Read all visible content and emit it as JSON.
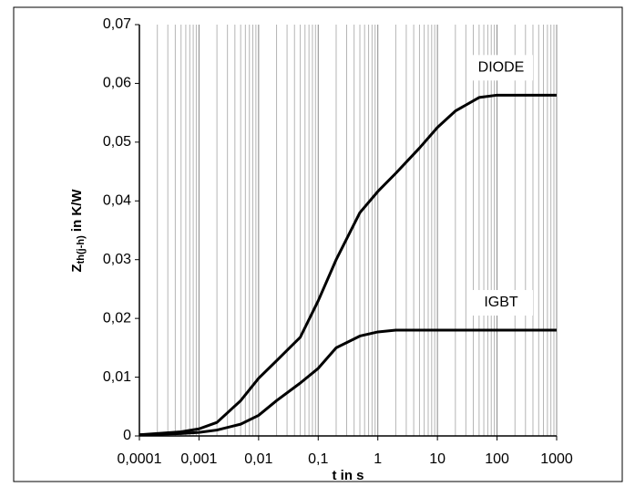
{
  "chart_data": {
    "type": "line",
    "ylabel": {
      "main": "Z",
      "sub": "th(j-h)",
      "rest": " in K/W"
    },
    "xlabel": "t in s",
    "xscale": "log",
    "grid": true,
    "x": [
      0.0001,
      0.0005,
      0.001,
      0.002,
      0.005,
      0.01,
      0.02,
      0.05,
      0.1,
      0.2,
      0.5,
      1,
      2,
      5,
      10,
      20,
      50,
      100,
      1000
    ],
    "series": [
      {
        "name": "DIODE",
        "color": "#000000",
        "values": [
          0.0002,
          0.0007,
          0.0012,
          0.0023,
          0.006,
          0.0098,
          0.0128,
          0.0168,
          0.023,
          0.03,
          0.038,
          0.0416,
          0.0447,
          0.049,
          0.0525,
          0.0553,
          0.0576,
          0.058,
          0.058
        ]
      },
      {
        "name": "IGBT",
        "color": "#000000",
        "values": [
          0.0002,
          0.0004,
          0.0006,
          0.001,
          0.002,
          0.0035,
          0.006,
          0.009,
          0.0115,
          0.015,
          0.017,
          0.0177,
          0.018,
          0.018,
          0.018,
          0.018,
          0.018,
          0.018,
          0.018
        ]
      }
    ],
    "xlim": [
      0.0001,
      1000
    ],
    "xticks": [
      {
        "value": 0.0001,
        "label": "0,0001"
      },
      {
        "value": 0.001,
        "label": "0,001"
      },
      {
        "value": 0.01,
        "label": "0,01"
      },
      {
        "value": 0.1,
        "label": "0,1"
      },
      1,
      10,
      100,
      1000
    ],
    "ylim": [
      0,
      0.07
    ],
    "yticks": [
      0,
      {
        "value": 0.01,
        "label": "0,01"
      },
      {
        "value": 0.02,
        "label": "0,02"
      },
      {
        "value": 0.03,
        "label": "0,03"
      },
      {
        "value": 0.04,
        "label": "0,04"
      },
      {
        "value": 0.05,
        "label": "0,05"
      },
      {
        "value": 0.06,
        "label": "0,06"
      },
      {
        "value": 0.07,
        "label": "0,07"
      }
    ]
  }
}
